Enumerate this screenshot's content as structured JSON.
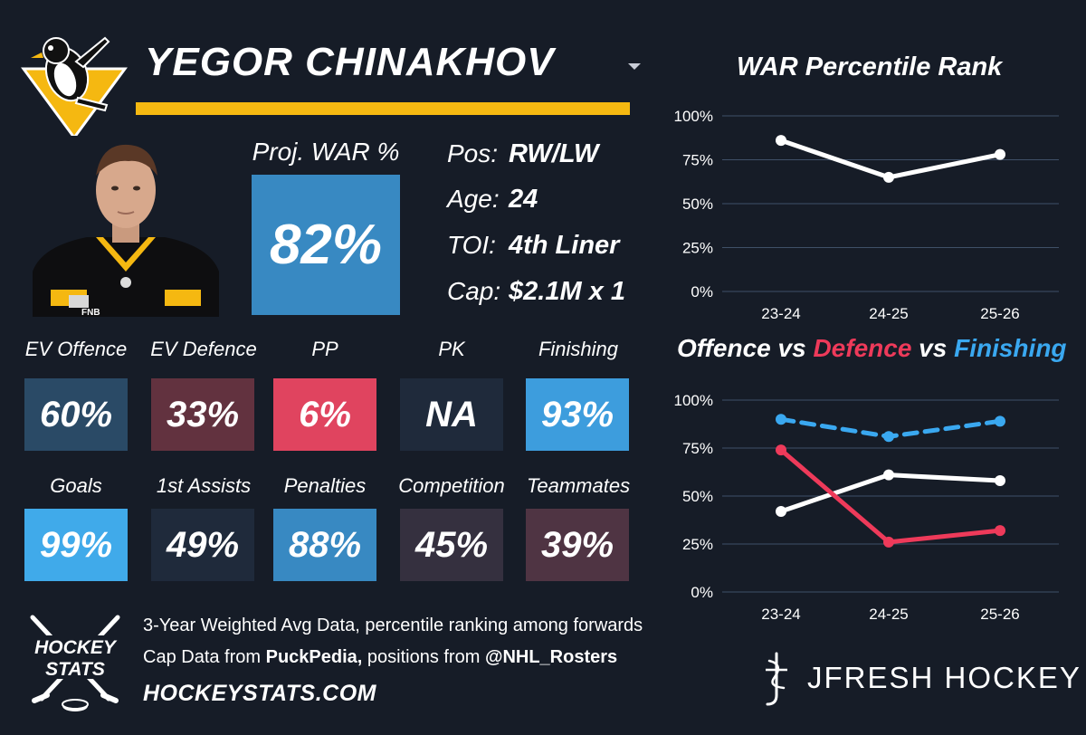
{
  "player": {
    "name": "YEGOR CHINAKHOV",
    "team_logo": "penguins-logo",
    "sponsor_patch": "FNB"
  },
  "projection": {
    "label": "Proj. WAR %",
    "value": "82%"
  },
  "info": [
    {
      "key": "Pos:",
      "value": "RW/LW"
    },
    {
      "key": "Age:",
      "value": "24"
    },
    {
      "key": "TOI:",
      "value": "4th Liner"
    },
    {
      "key": "Cap:",
      "value": "$2.1M x 1"
    }
  ],
  "tiles_row1": [
    {
      "label": "EV Offence",
      "value": "60%",
      "color": "#2a4a66"
    },
    {
      "label": "EV Defence",
      "value": "33%",
      "color": "#62323f"
    },
    {
      "label": "PP",
      "value": "6%",
      "color": "#e0445f"
    },
    {
      "label": "PK",
      "value": "NA",
      "color": "#1f2a3b"
    },
    {
      "label": "Finishing",
      "value": "93%",
      "color": "#3d9ddd"
    }
  ],
  "tiles_row2": [
    {
      "label": "Goals",
      "value": "99%",
      "color": "#40aaea"
    },
    {
      "label": "1st Assists",
      "value": "49%",
      "color": "#1f2a3b"
    },
    {
      "label": "Penalties",
      "value": "88%",
      "color": "#3889c2"
    },
    {
      "label": "Competition",
      "value": "45%",
      "color": "#35303f"
    },
    {
      "label": "Teammates",
      "value": "39%",
      "color": "#4f3443"
    }
  ],
  "footer": {
    "logo_line1": "HOCKEY",
    "logo_line2": "STATS",
    "line1": "3-Year Weighted Avg Data, percentile ranking among forwards",
    "line2_a": "Cap Data from ",
    "line2_b": "PuckPedia,",
    "line2_c": " positions from ",
    "line2_d": "@NHL_Rosters",
    "url": "HOCKEYSTATS.COM",
    "brand": "JFRESH HOCKEY"
  },
  "colors": {
    "background": "#161c27",
    "accent_yellow": "#f5b811",
    "offence_line": "#ffffff",
    "defence_line": "#ee3a5a",
    "finishing_line": "#3aa8f0"
  },
  "chart_data": [
    {
      "type": "line",
      "title": "WAR Percentile Rank",
      "categories": [
        "23-24",
        "24-25",
        "25-26"
      ],
      "ylim": [
        0,
        100
      ],
      "yticks": [
        0,
        25,
        50,
        75,
        100
      ],
      "ytick_labels": [
        "0%",
        "25%",
        "50%",
        "75%",
        "100%"
      ],
      "grid": true,
      "series": [
        {
          "name": "WAR",
          "values": [
            86,
            65,
            78
          ],
          "color": "#ffffff",
          "dashed": false
        }
      ]
    },
    {
      "type": "line",
      "title_parts": [
        {
          "text": "Offence",
          "color": "#ffffff"
        },
        {
          "text": " vs ",
          "color": "#ffffff"
        },
        {
          "text": "Defence",
          "color": "#ee3a5a"
        },
        {
          "text": " vs ",
          "color": "#ffffff"
        },
        {
          "text": "Finishing",
          "color": "#3aa8f0"
        }
      ],
      "categories": [
        "23-24",
        "24-25",
        "25-26"
      ],
      "ylim": [
        0,
        100
      ],
      "yticks": [
        0,
        25,
        50,
        75,
        100
      ],
      "ytick_labels": [
        "0%",
        "25%",
        "50%",
        "75%",
        "100%"
      ],
      "grid": true,
      "series": [
        {
          "name": "Finishing",
          "values": [
            90,
            81,
            89
          ],
          "color": "#3aa8f0",
          "dashed": true
        },
        {
          "name": "Offence",
          "values": [
            42,
            61,
            58
          ],
          "color": "#ffffff",
          "dashed": false
        },
        {
          "name": "Defence",
          "values": [
            74,
            26,
            32
          ],
          "color": "#ee3a5a",
          "dashed": false
        }
      ]
    }
  ]
}
